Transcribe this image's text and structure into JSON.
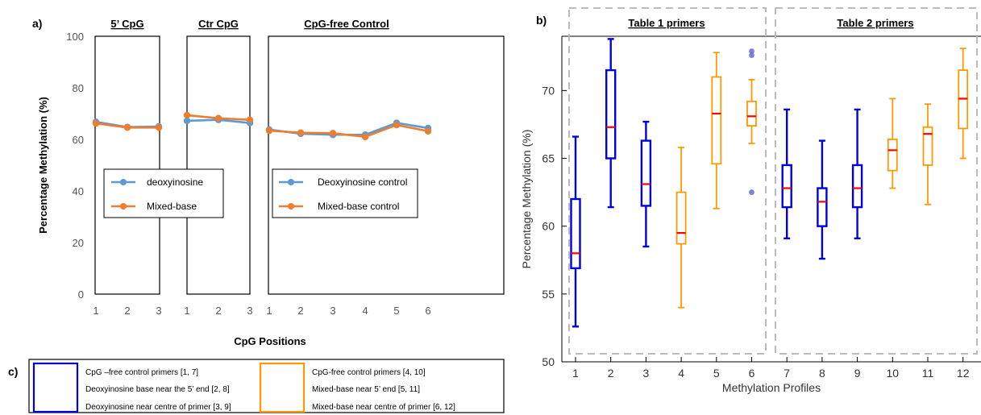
{
  "colors": {
    "deoxyinosine": "#5B9BD5",
    "mixed_base": "#ED7D31",
    "blue_box": "#0000DD",
    "orange_box": "#FF9900",
    "median": "#FF0000",
    "outlier": "#6A6AD8",
    "axis_gray": "#555555",
    "dashed_gray": "#BBBBBB"
  },
  "panels": {
    "a_label": "a)",
    "b_label": "b)",
    "c_label": "c)"
  },
  "chart_data": [
    {
      "type": "line",
      "panel": "a)",
      "xlabel": "CpG Positions",
      "ylabel": "Percentage Methylation (%)",
      "ylim": [
        0,
        100
      ],
      "y_ticks": [
        "0",
        "20",
        "40",
        "60",
        "80",
        "100"
      ],
      "grid": false,
      "groups": [
        {
          "title": "5’ CpG",
          "x": [
            "1",
            "2",
            "3"
          ],
          "series": [
            {
              "name": "deoxyinosine",
              "values": [
                66.8,
                64.8,
                65.0
              ]
            },
            {
              "name": "Mixed-base",
              "values": [
                66.2,
                64.6,
                64.6
              ]
            }
          ]
        },
        {
          "title": "Ctr CpG",
          "x": [
            "1",
            "2",
            "3"
          ],
          "series": [
            {
              "name": "deoxyinosine",
              "values": [
                67.2,
                67.6,
                66.4
              ]
            },
            {
              "name": "Mixed-base",
              "values": [
                69.4,
                68.2,
                67.6
              ]
            }
          ]
        },
        {
          "title": "CpG-free Control",
          "x": [
            "1",
            "2",
            "3",
            "4",
            "5",
            "6"
          ],
          "series": [
            {
              "name": "Deoxyinosine control",
              "values": [
                63.8,
                62.2,
                61.8,
                61.8,
                66.4,
                64.4
              ]
            },
            {
              "name": "Mixed-base control",
              "values": [
                63.4,
                62.6,
                62.4,
                61.0,
                65.6,
                63.2
              ]
            }
          ]
        }
      ],
      "legends": [
        {
          "entries": [
            "deoxyinosine",
            "Mixed-base"
          ]
        },
        {
          "entries": [
            "Deoxyinosine control",
            "Mixed-base control"
          ]
        }
      ]
    },
    {
      "type": "box",
      "panel": "b)",
      "xlabel": "Methylation Profiles",
      "ylabel": "Percentage Methylation (%)",
      "ylim": [
        50,
        74
      ],
      "y_ticks": [
        "50",
        "55",
        "60",
        "65",
        "70"
      ],
      "categories": [
        "1",
        "2",
        "3",
        "4",
        "5",
        "6",
        "7",
        "8",
        "9",
        "10",
        "11",
        "12"
      ],
      "group_titles": [
        "Table 1 primers",
        "Table 2 primers"
      ],
      "boxes": [
        {
          "x": "1",
          "color": "blue",
          "whislo": 52.6,
          "q1": 56.9,
          "med": 58.0,
          "q3": 62.0,
          "whishi": 66.6,
          "fliers": []
        },
        {
          "x": "2",
          "color": "blue",
          "whislo": 61.4,
          "q1": 65.0,
          "med": 67.3,
          "q3": 71.5,
          "whishi": 73.8,
          "fliers": []
        },
        {
          "x": "3",
          "color": "blue",
          "whislo": 58.5,
          "q1": 61.5,
          "med": 63.1,
          "q3": 66.3,
          "whishi": 67.7,
          "fliers": []
        },
        {
          "x": "4",
          "color": "orange",
          "whislo": 54.0,
          "q1": 58.7,
          "med": 59.5,
          "q3": 62.5,
          "whishi": 65.8,
          "fliers": []
        },
        {
          "x": "5",
          "color": "orange",
          "whislo": 61.3,
          "q1": 64.6,
          "med": 68.3,
          "q3": 71.0,
          "whishi": 72.8,
          "fliers": []
        },
        {
          "x": "6",
          "color": "orange",
          "whislo": 66.1,
          "q1": 67.4,
          "med": 68.1,
          "q3": 69.2,
          "whishi": 70.8,
          "fliers": [
            72.9,
            72.6,
            62.5
          ]
        },
        {
          "x": "7",
          "color": "blue",
          "whislo": 59.1,
          "q1": 61.4,
          "med": 62.8,
          "q3": 64.5,
          "whishi": 68.6,
          "fliers": []
        },
        {
          "x": "8",
          "color": "blue",
          "whislo": 57.6,
          "q1": 60.0,
          "med": 61.8,
          "q3": 62.8,
          "whishi": 66.3,
          "fliers": []
        },
        {
          "x": "9",
          "color": "blue",
          "whislo": 59.1,
          "q1": 61.4,
          "med": 62.8,
          "q3": 64.5,
          "whishi": 68.6,
          "fliers": []
        },
        {
          "x": "10",
          "color": "orange",
          "whislo": 62.8,
          "q1": 64.1,
          "med": 65.6,
          "q3": 66.4,
          "whishi": 69.4,
          "fliers": []
        },
        {
          "x": "11",
          "color": "orange",
          "whislo": 61.6,
          "q1": 64.5,
          "med": 66.8,
          "q3": 67.3,
          "whishi": 69.0,
          "fliers": []
        },
        {
          "x": "12",
          "color": "orange",
          "whislo": 65.0,
          "q1": 67.2,
          "med": 69.4,
          "q3": 71.5,
          "whishi": 73.1,
          "fliers": []
        }
      ]
    }
  ],
  "legend_c": {
    "blue_lines": [
      "CpG –free control primers [1, 7]",
      "Deoxyinosine base near the 5’ end [2, 8]",
      "Deoxyinosine near centre of primer [3, 9]"
    ],
    "orange_lines": [
      "CpG-free control primers [4, 10]",
      "Mixed-base near 5’ end [5, 11]",
      "Mixed-base near centre of primer [6, 12]"
    ]
  }
}
